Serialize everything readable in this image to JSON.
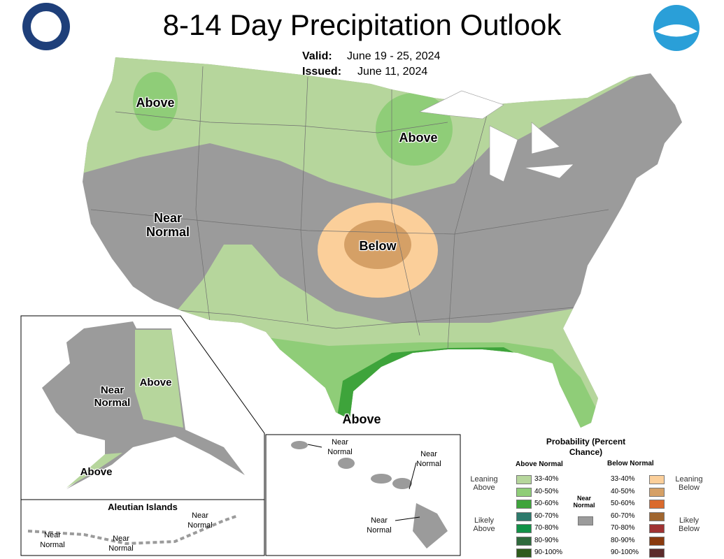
{
  "header": {
    "title": "8-14 Day Precipitation Outlook",
    "valid_label": "Valid:",
    "valid": "June 19 - 25, 2024",
    "issued_label": "Issued:",
    "issued": "June 11, 2024"
  },
  "map_labels": [
    "Above",
    "Above",
    "Near Normal",
    "Below",
    "Above"
  ],
  "alaska_labels": [
    "Near Normal",
    "Above",
    "Above"
  ],
  "aleutian": {
    "title": "Aleutian Islands",
    "labels": [
      "Near Normal",
      "Near Normal",
      "Near Normal"
    ]
  },
  "hawaii_labels": [
    "Near Normal",
    "Near Normal",
    "Near Normal"
  ],
  "legend": {
    "title": "Probability (Percent Chance)",
    "above_heading": "Above Normal",
    "below_heading": "Below Normal",
    "leaning_above": "Leaning Above",
    "likely_above": "Likely Above",
    "near_normal": "Near Normal",
    "leaning_below": "Leaning Below",
    "likely_below": "Likely Below",
    "near_color": "#9b9b9b",
    "above": [
      {
        "label": "33-40%",
        "color": "#b6d69c"
      },
      {
        "label": "40-50%",
        "color": "#8fcd78"
      },
      {
        "label": "50-60%",
        "color": "#3ea43b"
      },
      {
        "label": "60-70%",
        "color": "#2d7a6c"
      },
      {
        "label": "70-80%",
        "color": "#129247"
      },
      {
        "label": "80-90%",
        "color": "#2f6a3c"
      },
      {
        "label": "90-100%",
        "color": "#2f5c1c"
      }
    ],
    "below": [
      {
        "label": "33-40%",
        "color": "#fbcf9a"
      },
      {
        "label": "40-50%",
        "color": "#d5a066"
      },
      {
        "label": "50-60%",
        "color": "#da6a2d"
      },
      {
        "label": "60-70%",
        "color": "#a0662f"
      },
      {
        "label": "70-80%",
        "color": "#a03232"
      },
      {
        "label": "80-90%",
        "color": "#8a3a0e"
      },
      {
        "label": "90-100%",
        "color": "#5c2b2b"
      }
    ]
  }
}
